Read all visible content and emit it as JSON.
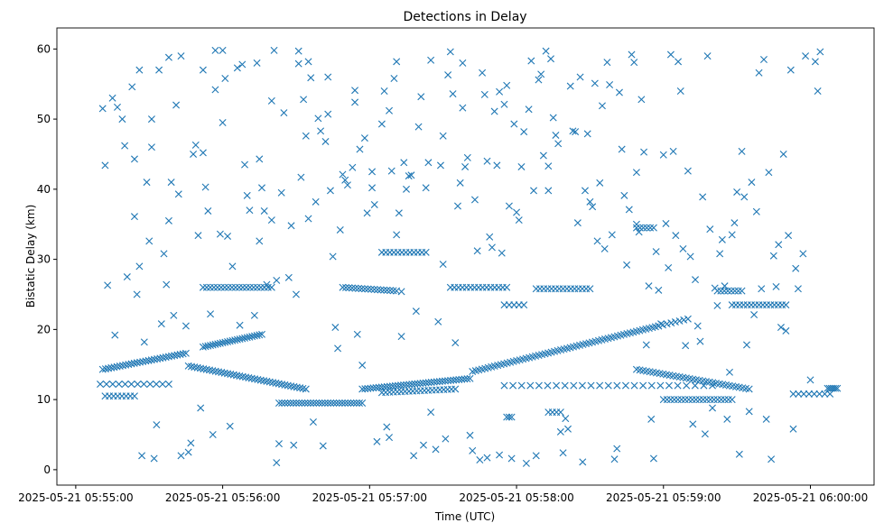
{
  "chart_data": {
    "type": "scatter",
    "title": "Detections in Delay",
    "xlabel": "Time (UTC)",
    "ylabel": "Bistatic Delay (km)",
    "x_units": "seconds after 2025-05-21 05:55:00",
    "xlim": [
      -7.7,
      326
    ],
    "ylim": [
      -2.2,
      63
    ],
    "x_ticks": [
      {
        "value": 0,
        "label": "2025-05-21 05:55:00"
      },
      {
        "value": 60,
        "label": "2025-05-21 05:56:00"
      },
      {
        "value": 120,
        "label": "2025-05-21 05:57:00"
      },
      {
        "value": 180,
        "label": "2025-05-21 05:58:00"
      },
      {
        "value": 240,
        "label": "2025-05-21 05:59:00"
      },
      {
        "value": 300,
        "label": "2025-05-21 06:00:00"
      }
    ],
    "y_ticks": [
      0,
      10,
      20,
      30,
      40,
      50,
      60
    ],
    "marker": "x",
    "color": "#1f77b4",
    "grid": false,
    "tracks": [
      {
        "t": [
          11,
          45
        ],
        "d": [
          14.3,
          16.6
        ],
        "n": 30
      },
      {
        "t": [
          52,
          76
        ],
        "d": [
          17.5,
          19.3
        ],
        "n": 25
      },
      {
        "t": [
          46,
          94
        ],
        "d": [
          14.8,
          11.5
        ],
        "n": 40
      },
      {
        "t": [
          83,
          117
        ],
        "d": [
          9.5,
          9.5
        ],
        "n": 30
      },
      {
        "t": [
          117,
          161
        ],
        "d": [
          11.5,
          13.0
        ],
        "n": 40
      },
      {
        "t": [
          125,
          155
        ],
        "d": [
          11.0,
          11.5
        ],
        "n": 20
      },
      {
        "t": [
          162,
          238
        ],
        "d": [
          14.0,
          20.5
        ],
        "n": 60
      },
      {
        "t": [
          238,
          250
        ],
        "d": [
          20.5,
          21.5
        ],
        "n": 8
      },
      {
        "t": [
          229,
          275
        ],
        "d": [
          14.3,
          11.5
        ],
        "n": 35
      },
      {
        "t": [
          240,
          268
        ],
        "d": [
          10.0,
          10.0
        ],
        "n": 20
      },
      {
        "t": [
          52,
          80
        ],
        "d": [
          26.0,
          26.0
        ],
        "n": 20
      },
      {
        "t": [
          109,
          131
        ],
        "d": [
          26.0,
          25.5
        ],
        "n": 18
      },
      {
        "t": [
          153,
          176
        ],
        "d": [
          26.0,
          26.0
        ],
        "n": 15
      },
      {
        "t": [
          188,
          210
        ],
        "d": [
          25.8,
          25.8
        ],
        "n": 15
      },
      {
        "t": [
          262,
          272
        ],
        "d": [
          25.5,
          25.5
        ],
        "n": 8
      },
      {
        "t": [
          268,
          290
        ],
        "d": [
          23.5,
          23.5
        ],
        "n": 15
      },
      {
        "t": [
          125,
          143
        ],
        "d": [
          31.0,
          31.0
        ],
        "n": 12
      },
      {
        "t": [
          10,
          38
        ],
        "d": [
          12.2,
          12.2
        ],
        "n": 12
      },
      {
        "t": [
          12,
          24
        ],
        "d": [
          10.5,
          10.5
        ],
        "n": 8
      },
      {
        "t": [
          229,
          236
        ],
        "d": [
          34.5,
          34.5
        ],
        "n": 6
      },
      {
        "t": [
          175,
          260
        ],
        "d": [
          12.0,
          12.0
        ],
        "n": 25
      },
      {
        "t": [
          175,
          183
        ],
        "d": [
          23.5,
          23.5
        ],
        "n": 5
      },
      {
        "t": [
          193,
          198
        ],
        "d": [
          8.2,
          8.2
        ],
        "n": 4
      },
      {
        "t": [
          176,
          178
        ],
        "d": [
          7.5,
          7.5
        ],
        "n": 3
      },
      {
        "t": [
          307,
          311
        ],
        "d": [
          11.6,
          11.6
        ],
        "n": 6
      },
      {
        "t": [
          293,
          308
        ],
        "d": [
          10.8,
          10.8
        ],
        "n": 8
      }
    ],
    "points": [
      [
        11,
        51.5
      ],
      [
        12,
        43.4
      ],
      [
        13,
        26.3
      ],
      [
        15,
        53
      ],
      [
        16,
        19.2
      ],
      [
        17,
        51.7
      ],
      [
        19,
        50
      ],
      [
        20,
        46.2
      ],
      [
        21,
        27.5
      ],
      [
        23,
        54.6
      ],
      [
        24,
        44.3
      ],
      [
        24,
        36.1
      ],
      [
        25,
        25
      ],
      [
        26,
        29
      ],
      [
        26,
        57
      ],
      [
        27,
        2
      ],
      [
        28,
        18.2
      ],
      [
        29,
        41
      ],
      [
        30,
        32.6
      ],
      [
        31,
        46
      ],
      [
        31,
        50
      ],
      [
        32,
        1.6
      ],
      [
        33,
        6.4
      ],
      [
        34,
        57
      ],
      [
        35,
        20.8
      ],
      [
        36,
        30.8
      ],
      [
        37,
        26.4
      ],
      [
        38,
        35.5
      ],
      [
        38,
        58.8
      ],
      [
        39,
        41
      ],
      [
        40,
        22
      ],
      [
        41,
        52
      ],
      [
        42,
        39.3
      ],
      [
        43,
        2
      ],
      [
        43,
        59
      ],
      [
        45,
        20.5
      ],
      [
        46,
        2.5
      ],
      [
        47,
        3.8
      ],
      [
        48,
        45
      ],
      [
        49,
        46.3
      ],
      [
        50,
        33.4
      ],
      [
        51,
        8.8
      ],
      [
        52,
        57
      ],
      [
        52,
        45.2
      ],
      [
        53,
        40.3
      ],
      [
        54,
        36.9
      ],
      [
        55,
        22.2
      ],
      [
        56,
        5
      ],
      [
        57,
        54.2
      ],
      [
        57,
        59.8
      ],
      [
        59,
        33.6
      ],
      [
        60,
        49.5
      ],
      [
        60,
        59.8
      ],
      [
        61,
        55.8
      ],
      [
        62,
        33.3
      ],
      [
        63,
        6.2
      ],
      [
        64,
        29
      ],
      [
        66,
        57.3
      ],
      [
        67,
        20.6
      ],
      [
        68,
        57.8
      ],
      [
        69,
        43.5
      ],
      [
        70,
        39.1
      ],
      [
        71,
        37
      ],
      [
        73,
        22
      ],
      [
        74,
        58
      ],
      [
        75,
        44.3
      ],
      [
        75,
        32.6
      ],
      [
        76,
        40.2
      ],
      [
        77,
        36.9
      ],
      [
        78,
        26.4
      ],
      [
        80,
        35.6
      ],
      [
        80,
        52.6
      ],
      [
        81,
        59.8
      ],
      [
        82,
        1
      ],
      [
        82,
        27
      ],
      [
        83,
        3.7
      ],
      [
        84,
        39.5
      ],
      [
        85,
        50.9
      ],
      [
        87,
        27.4
      ],
      [
        88,
        34.8
      ],
      [
        89,
        3.5
      ],
      [
        90,
        25
      ],
      [
        91,
        57.9
      ],
      [
        91,
        59.7
      ],
      [
        92,
        41.7
      ],
      [
        93,
        52.8
      ],
      [
        94,
        47.6
      ],
      [
        95,
        58.2
      ],
      [
        95,
        35.8
      ],
      [
        96,
        55.9
      ],
      [
        97,
        6.8
      ],
      [
        98,
        38.2
      ],
      [
        99,
        50.1
      ],
      [
        100,
        48.3
      ],
      [
        101,
        3.4
      ],
      [
        102,
        46.8
      ],
      [
        103,
        50.7
      ],
      [
        103,
        56
      ],
      [
        104,
        39.8
      ],
      [
        105,
        30.4
      ],
      [
        106,
        20.3
      ],
      [
        107,
        17.3
      ],
      [
        108,
        34.2
      ],
      [
        109,
        42.1
      ],
      [
        110,
        41.3
      ],
      [
        111,
        40.6
      ],
      [
        113,
        43.1
      ],
      [
        114,
        54.1
      ],
      [
        114,
        52.4
      ],
      [
        115,
        19.3
      ],
      [
        116,
        45.7
      ],
      [
        117,
        14.9
      ],
      [
        118,
        47.3
      ],
      [
        119,
        36.6
      ],
      [
        121,
        40.2
      ],
      [
        121,
        42.5
      ],
      [
        122,
        37.8
      ],
      [
        123,
        4
      ],
      [
        125,
        49.3
      ],
      [
        126,
        54
      ],
      [
        127,
        6.1
      ],
      [
        128,
        51.2
      ],
      [
        128,
        4.6
      ],
      [
        129,
        42.6
      ],
      [
        130,
        55.8
      ],
      [
        131,
        33.5
      ],
      [
        131,
        58.2
      ],
      [
        132,
        36.6
      ],
      [
        133,
        25.4
      ],
      [
        133,
        19
      ],
      [
        134,
        43.8
      ],
      [
        135,
        40
      ],
      [
        136,
        41.9
      ],
      [
        137,
        42
      ],
      [
        138,
        2
      ],
      [
        139,
        22.6
      ],
      [
        140,
        48.9
      ],
      [
        141,
        53.2
      ],
      [
        142,
        3.5
      ],
      [
        143,
        40.2
      ],
      [
        144,
        43.8
      ],
      [
        145,
        58.4
      ],
      [
        145,
        8.2
      ],
      [
        147,
        2.9
      ],
      [
        148,
        21.1
      ],
      [
        149,
        43.4
      ],
      [
        150,
        29.3
      ],
      [
        150,
        47.6
      ],
      [
        151,
        4.4
      ],
      [
        152,
        56.3
      ],
      [
        153,
        59.6
      ],
      [
        154,
        53.6
      ],
      [
        155,
        18.1
      ],
      [
        156,
        37.6
      ],
      [
        157,
        40.9
      ],
      [
        158,
        51.6
      ],
      [
        158,
        58
      ],
      [
        159,
        43.2
      ],
      [
        160,
        44.5
      ],
      [
        161,
        4.9
      ],
      [
        162,
        2.7
      ],
      [
        163,
        38.5
      ],
      [
        164,
        31.2
      ],
      [
        165,
        1.4
      ],
      [
        166,
        56.6
      ],
      [
        167,
        53.5
      ],
      [
        168,
        1.7
      ],
      [
        168,
        44
      ],
      [
        169,
        33.2
      ],
      [
        170,
        31.7
      ],
      [
        171,
        51.1
      ],
      [
        172,
        43.4
      ],
      [
        173,
        53.9
      ],
      [
        173,
        2.1
      ],
      [
        174,
        30.9
      ],
      [
        175,
        52.1
      ],
      [
        176,
        54.8
      ],
      [
        177,
        37.6
      ],
      [
        178,
        1.6
      ],
      [
        179,
        49.3
      ],
      [
        180,
        36.7
      ],
      [
        181,
        35.6
      ],
      [
        182,
        43.2
      ],
      [
        183,
        48.2
      ],
      [
        184,
        0.9
      ],
      [
        185,
        51.4
      ],
      [
        186,
        58.3
      ],
      [
        187,
        39.8
      ],
      [
        188,
        2
      ],
      [
        189,
        55.6
      ],
      [
        190,
        56.4
      ],
      [
        191,
        44.8
      ],
      [
        192,
        59.7
      ],
      [
        193,
        39.8
      ],
      [
        193,
        43.3
      ],
      [
        194,
        58.6
      ],
      [
        195,
        50.2
      ],
      [
        196,
        47.7
      ],
      [
        197,
        46.5
      ],
      [
        198,
        5.4
      ],
      [
        199,
        2.4
      ],
      [
        200,
        7.3
      ],
      [
        201,
        5.8
      ],
      [
        202,
        54.7
      ],
      [
        203,
        48.3
      ],
      [
        204,
        48.2
      ],
      [
        205,
        35.2
      ],
      [
        206,
        56
      ],
      [
        207,
        1.1
      ],
      [
        208,
        39.8
      ],
      [
        209,
        47.9
      ],
      [
        210,
        38.2
      ],
      [
        211,
        37.5
      ],
      [
        212,
        55.1
      ],
      [
        213,
        32.6
      ],
      [
        214,
        40.9
      ],
      [
        215,
        51.9
      ],
      [
        216,
        31.5
      ],
      [
        217,
        58.1
      ],
      [
        218,
        54.9
      ],
      [
        219,
        33.5
      ],
      [
        220,
        1.5
      ],
      [
        221,
        3
      ],
      [
        222,
        53.8
      ],
      [
        223,
        45.7
      ],
      [
        224,
        39.1
      ],
      [
        225,
        29.2
      ],
      [
        226,
        37.1
      ],
      [
        227,
        59.2
      ],
      [
        228,
        58.1
      ],
      [
        229,
        42.4
      ],
      [
        229,
        35
      ],
      [
        230,
        33.9
      ],
      [
        231,
        52.8
      ],
      [
        232,
        45.3
      ],
      [
        233,
        17.8
      ],
      [
        234,
        26.2
      ],
      [
        235,
        7.2
      ],
      [
        236,
        1.6
      ],
      [
        237,
        31.1
      ],
      [
        238,
        25.6
      ],
      [
        239,
        20.8
      ],
      [
        240,
        44.9
      ],
      [
        241,
        35.1
      ],
      [
        242,
        28.8
      ],
      [
        243,
        59.2
      ],
      [
        244,
        45.4
      ],
      [
        245,
        33.4
      ],
      [
        246,
        58.2
      ],
      [
        247,
        54
      ],
      [
        248,
        31.5
      ],
      [
        249,
        17.7
      ],
      [
        250,
        42.6
      ],
      [
        251,
        30.4
      ],
      [
        252,
        6.5
      ],
      [
        253,
        27.1
      ],
      [
        254,
        20.5
      ],
      [
        255,
        18.3
      ],
      [
        256,
        38.9
      ],
      [
        257,
        5.1
      ],
      [
        258,
        59
      ],
      [
        259,
        34.3
      ],
      [
        260,
        8.8
      ],
      [
        261,
        25.9
      ],
      [
        262,
        23.4
      ],
      [
        263,
        30.8
      ],
      [
        264,
        32.8
      ],
      [
        265,
        26.2
      ],
      [
        266,
        7.2
      ],
      [
        267,
        13.9
      ],
      [
        268,
        33.5
      ],
      [
        269,
        35.2
      ],
      [
        270,
        39.6
      ],
      [
        271,
        2.2
      ],
      [
        272,
        45.4
      ],
      [
        273,
        38.9
      ],
      [
        274,
        17.8
      ],
      [
        275,
        8.3
      ],
      [
        276,
        41
      ],
      [
        277,
        22.1
      ],
      [
        278,
        36.8
      ],
      [
        279,
        56.6
      ],
      [
        280,
        25.8
      ],
      [
        281,
        58.5
      ],
      [
        282,
        7.2
      ],
      [
        283,
        42.4
      ],
      [
        284,
        1.5
      ],
      [
        285,
        30.5
      ],
      [
        286,
        26.1
      ],
      [
        287,
        32.1
      ],
      [
        288,
        20.3
      ],
      [
        289,
        45
      ],
      [
        290,
        19.8
      ],
      [
        291,
        33.4
      ],
      [
        292,
        57
      ],
      [
        293,
        5.8
      ],
      [
        294,
        28.7
      ],
      [
        295,
        25.8
      ],
      [
        297,
        30.8
      ],
      [
        298,
        59
      ],
      [
        300,
        12.8
      ],
      [
        302,
        58.2
      ],
      [
        303,
        54
      ],
      [
        304,
        59.6
      ]
    ]
  }
}
